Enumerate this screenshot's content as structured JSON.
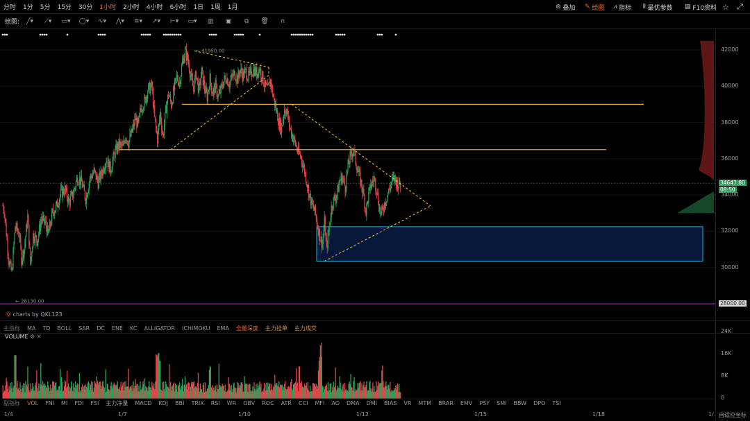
{
  "timeframes": [
    "分时",
    "1分",
    "5分",
    "15分",
    "30分",
    "1小时",
    "2小时",
    "4小时",
    "6小时",
    "1日",
    "1周",
    "1月"
  ],
  "active_timeframe": "1小时",
  "top_right": {
    "overlay": "叠加",
    "draw": "绘图",
    "indicators": "指标",
    "params": "最优参数",
    "f10": "F10资料"
  },
  "draw_label": "绘图:",
  "price_axis": {
    "ticks": [
      "42000",
      "40000",
      "38000",
      "36000",
      "34000",
      "32000",
      "30000",
      "28000"
    ]
  },
  "current_price": "34647.80",
  "countdown": "08:50",
  "support_label": "28000.00",
  "high_label": "41950.00",
  "low_label": "28130.00",
  "brand": "charts by QKL123",
  "main_indicators": [
    "主指标",
    "MA",
    "TD",
    "BOLL",
    "SAR",
    "DC",
    "ENE",
    "KC",
    "ALLIGATOR",
    "ICHIMOKU",
    "EMA",
    "全量深度",
    "主力挂单",
    "主力成交"
  ],
  "volume_title": "VOLUME",
  "volume_axis": [
    "24K",
    "16K",
    "8K",
    "0"
  ],
  "sub_indicators": [
    "副指标",
    "VOL",
    "FNI",
    "MI",
    "FDI",
    "FSI",
    "主力净量",
    "MACD",
    "KDJ",
    "BBI",
    "TRIX",
    "RSI",
    "WR",
    "OBV",
    "ROC",
    "ATR",
    "CCI",
    "MFI",
    "AO",
    "DMA",
    "DMI",
    "BIAS",
    "VR",
    "MTM",
    "BRAR",
    "EMV",
    "PSY",
    "SMI",
    "BBW",
    "DPO",
    "TSI"
  ],
  "x_labels": [
    "1/4",
    "1/7",
    "1/10",
    "1/12",
    "1/15",
    "1/18",
    "1/"
  ],
  "auto_fit": "自适应坐标",
  "colors": {
    "up": "#26a65b",
    "down": "#e6434a",
    "hline": "#e6a623",
    "trend": "#e6c229",
    "zone": "#21b6d6",
    "support": "#c028c0",
    "accent": "#e8692c"
  },
  "chart_data": {
    "type": "candlestick",
    "interval": "1h",
    "ylim": [
      27600,
      42900
    ],
    "start_close": 33400,
    "series_shape": [
      [
        0,
        33400
      ],
      [
        2,
        33200
      ],
      [
        6,
        31500
      ],
      [
        9,
        30300
      ],
      [
        13,
        29700
      ],
      [
        18,
        32300
      ],
      [
        24,
        31800
      ],
      [
        27,
        30500
      ],
      [
        31,
        31000
      ],
      [
        36,
        32800
      ],
      [
        40,
        30200
      ],
      [
        44,
        31800
      ],
      [
        50,
        31500
      ],
      [
        56,
        32700
      ],
      [
        62,
        32400
      ],
      [
        66,
        31800
      ],
      [
        72,
        33000
      ],
      [
        78,
        33400
      ],
      [
        84,
        34100
      ],
      [
        90,
        34300
      ],
      [
        96,
        33600
      ],
      [
        102,
        34100
      ],
      [
        108,
        35000
      ],
      [
        114,
        34700
      ],
      [
        120,
        33800
      ],
      [
        126,
        34900
      ],
      [
        132,
        35300
      ],
      [
        138,
        34700
      ],
      [
        144,
        35300
      ],
      [
        150,
        36000
      ],
      [
        156,
        35400
      ],
      [
        162,
        36300
      ],
      [
        168,
        36800
      ],
      [
        174,
        36600
      ],
      [
        178,
        37300
      ],
      [
        182,
        36900
      ],
      [
        188,
        37600
      ],
      [
        192,
        38200
      ],
      [
        196,
        37800
      ],
      [
        200,
        38800
      ],
      [
        206,
        39200
      ],
      [
        210,
        39800
      ],
      [
        216,
        40000
      ],
      [
        220,
        38200
      ],
      [
        224,
        37100
      ],
      [
        228,
        38500
      ],
      [
        232,
        37200
      ],
      [
        236,
        38600
      ],
      [
        240,
        39600
      ],
      [
        244,
        39000
      ],
      [
        248,
        39800
      ],
      [
        252,
        40500
      ],
      [
        256,
        40200
      ],
      [
        260,
        41300
      ],
      [
        264,
        41900
      ],
      [
        268,
        41500
      ],
      [
        272,
        40600
      ],
      [
        276,
        39800
      ],
      [
        280,
        40700
      ],
      [
        284,
        39700
      ],
      [
        288,
        40800
      ],
      [
        292,
        39900
      ],
      [
        296,
        39400
      ],
      [
        300,
        40400
      ],
      [
        304,
        39600
      ],
      [
        308,
        40000
      ],
      [
        312,
        39400
      ],
      [
        316,
        39800
      ],
      [
        320,
        40300
      ],
      [
        324,
        40500
      ],
      [
        328,
        40100
      ],
      [
        332,
        40500
      ],
      [
        336,
        40700
      ],
      [
        340,
        40400
      ],
      [
        344,
        40900
      ],
      [
        348,
        40600
      ],
      [
        352,
        40800
      ],
      [
        356,
        40500
      ],
      [
        360,
        40800
      ],
      [
        364,
        40900
      ],
      [
        368,
        40700
      ],
      [
        372,
        41000
      ],
      [
        376,
        40500
      ],
      [
        380,
        40000
      ],
      [
        384,
        39800
      ],
      [
        388,
        40300
      ],
      [
        392,
        39400
      ],
      [
        396,
        38700
      ],
      [
        400,
        38000
      ],
      [
        404,
        37700
      ],
      [
        408,
        38800
      ],
      [
        412,
        38500
      ],
      [
        416,
        37700
      ],
      [
        420,
        37200
      ],
      [
        424,
        36800
      ],
      [
        428,
        36300
      ],
      [
        432,
        36100
      ],
      [
        436,
        35500
      ],
      [
        440,
        34800
      ],
      [
        444,
        34000
      ],
      [
        448,
        33400
      ],
      [
        452,
        33100
      ],
      [
        456,
        32300
      ],
      [
        460,
        31600
      ],
      [
        463,
        31300
      ],
      [
        466,
        32500
      ],
      [
        469,
        31000
      ],
      [
        473,
        32300
      ],
      [
        476,
        33300
      ],
      [
        480,
        33800
      ],
      [
        484,
        34000
      ],
      [
        488,
        34800
      ],
      [
        492,
        35000
      ],
      [
        496,
        34400
      ],
      [
        500,
        35600
      ],
      [
        504,
        36200
      ],
      [
        508,
        36500
      ],
      [
        512,
        35700
      ],
      [
        516,
        35100
      ],
      [
        520,
        34500
      ],
      [
        523,
        33900
      ],
      [
        526,
        33100
      ],
      [
        530,
        34000
      ],
      [
        534,
        34600
      ],
      [
        538,
        34900
      ],
      [
        542,
        34300
      ],
      [
        545,
        33400
      ],
      [
        548,
        32900
      ],
      [
        552,
        33400
      ],
      [
        556,
        33900
      ],
      [
        560,
        34300
      ],
      [
        564,
        34800
      ],
      [
        568,
        34900
      ],
      [
        572,
        34600
      ],
      [
        576,
        34650
      ]
    ],
    "levels": [
      36500,
      39000,
      28000
    ],
    "zone": [
      30350,
      32250
    ],
    "volume_peak": 23000
  }
}
